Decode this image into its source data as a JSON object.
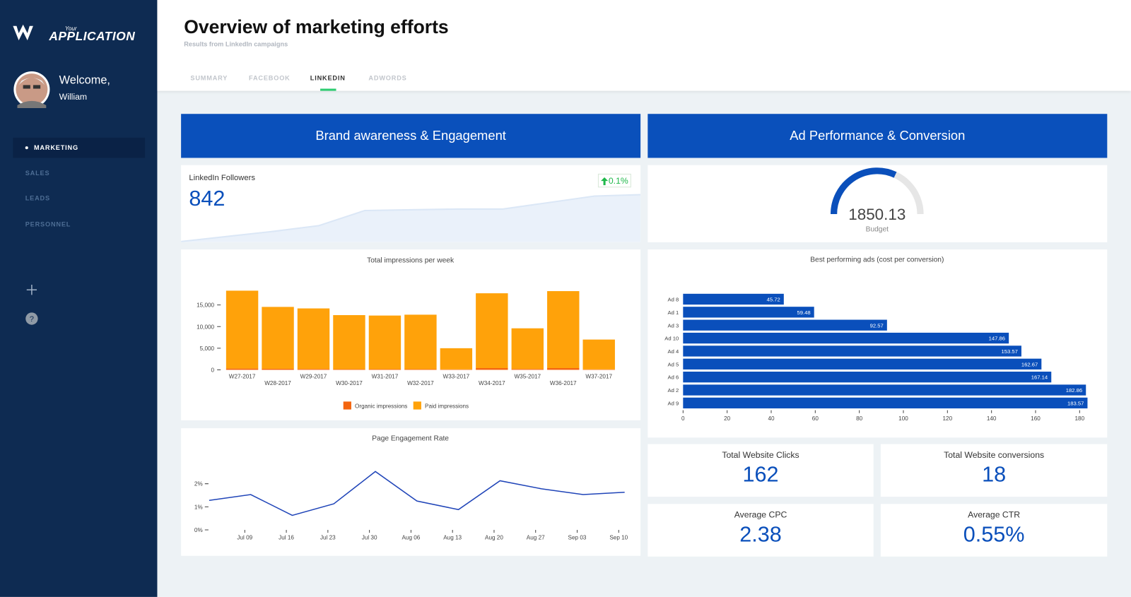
{
  "sidebar": {
    "brand_top": "Your",
    "brand": "APPLICATION",
    "greeting": "Welcome,",
    "user": "William",
    "nav": [
      "MARKETING",
      "SALES",
      "LEADS",
      "PERSONNEL"
    ],
    "active_nav": 0
  },
  "header": {
    "title": "Overview of marketing efforts",
    "subtitle": "Results from LinkedIn campaigns",
    "tabs": [
      "SUMMARY",
      "FACEBOOK",
      "LINKEDIN",
      "ADWORDS"
    ],
    "active_tab": 2
  },
  "sections": [
    "Brand awareness & Engagement",
    "Ad Performance & Conversion"
  ],
  "followers": {
    "label": "LinkedIn Followers",
    "value": 842,
    "change": "0.1%",
    "trend": [
      777,
      784,
      791,
      799,
      820,
      821,
      822,
      822,
      831,
      840,
      842
    ]
  },
  "impressions": {
    "type": "bar",
    "stacked": true,
    "title": "Total impressions per week",
    "categories": [
      "W27-2017",
      "W28-2017",
      "W29-2017",
      "W30-2017",
      "W31-2017",
      "W32-2017",
      "W33-2017",
      "W34-2017",
      "W35-2017",
      "W36-2017",
      "W37-2017"
    ],
    "series": [
      {
        "name": "Organic impressions",
        "color": "#f4650f",
        "values": [
          300,
          250,
          200,
          150,
          150,
          150,
          100,
          400,
          200,
          400,
          100
        ]
      },
      {
        "name": "Paid impressions",
        "color": "#ffa20a",
        "values": [
          18000,
          14300,
          14000,
          12500,
          12400,
          12600,
          4900,
          17300,
          9400,
          17800,
          6900
        ]
      }
    ],
    "ylim": [
      0,
      19000
    ],
    "yticks": [
      0,
      {
        "value": 5000,
        "label": "5,000"
      },
      {
        "value": 10000,
        "label": "10,000"
      },
      {
        "value": 15000,
        "label": "15,000"
      }
    ]
  },
  "engagement": {
    "type": "line",
    "title": "Page Engagement Rate",
    "color": "#1f44b8",
    "x": [
      "07-03",
      "07-10",
      "07-17",
      "07-24",
      "07-31",
      "08-07",
      "08-14",
      "08-21",
      "08-28",
      "09-04",
      "09-11"
    ],
    "values": [
      1.28,
      1.53,
      0.63,
      1.13,
      2.53,
      1.25,
      0.88,
      2.13,
      1.78,
      1.53,
      1.63
    ],
    "xlim": [
      "07-03",
      "09-11"
    ],
    "xticks": [
      {
        "value": "07-09",
        "label": "Jul 09"
      },
      {
        "value": "07-16",
        "label": "Jul 16"
      },
      {
        "value": "07-23",
        "label": "Jul 23"
      },
      {
        "value": "07-30",
        "label": "Jul 30"
      },
      {
        "value": "08-06",
        "label": "Aug 06"
      },
      {
        "value": "08-13",
        "label": "Aug 13"
      },
      {
        "value": "08-20",
        "label": "Aug 20"
      },
      {
        "value": "08-27",
        "label": "Aug 27"
      },
      {
        "value": "09-03",
        "label": "Sep 03"
      },
      {
        "value": "09-10",
        "label": "Sep 10"
      }
    ],
    "ylim": [
      0,
      3
    ],
    "yticks": [
      {
        "value": 0,
        "label": "0%"
      },
      {
        "value": 1,
        "label": "1%"
      },
      {
        "value": 2,
        "label": "2%"
      }
    ]
  },
  "budget": {
    "type": "gauge",
    "value": 1850.13,
    "label": "Budget",
    "range": [
      0,
      2900
    ],
    "color": "#0a4fbb"
  },
  "ads": {
    "type": "bar",
    "orientation": "h",
    "title": "Best performing ads (cost per conversion)",
    "color": "#0a4fbb",
    "categories": [
      "Ad 8",
      "Ad 1",
      "Ad 3",
      "Ad 10",
      "Ad 4",
      "Ad 5",
      "Ad 6",
      "Ad 2",
      "Ad 9"
    ],
    "values": [
      45.72,
      59.48,
      92.57,
      147.86,
      153.57,
      162.67,
      167.14,
      182.86,
      183.57
    ],
    "xlim": [
      0,
      184
    ],
    "xticks": [
      0,
      20,
      40,
      60,
      80,
      100,
      120,
      140,
      160,
      180
    ]
  },
  "kpis": [
    {
      "label": "Total Website Clicks",
      "value": 162
    },
    {
      "label": "Total Website conversions",
      "value": 18
    },
    {
      "label": "Average CPC",
      "value": 2.38
    },
    {
      "label": "Average CTR",
      "value": "0.55%"
    }
  ]
}
